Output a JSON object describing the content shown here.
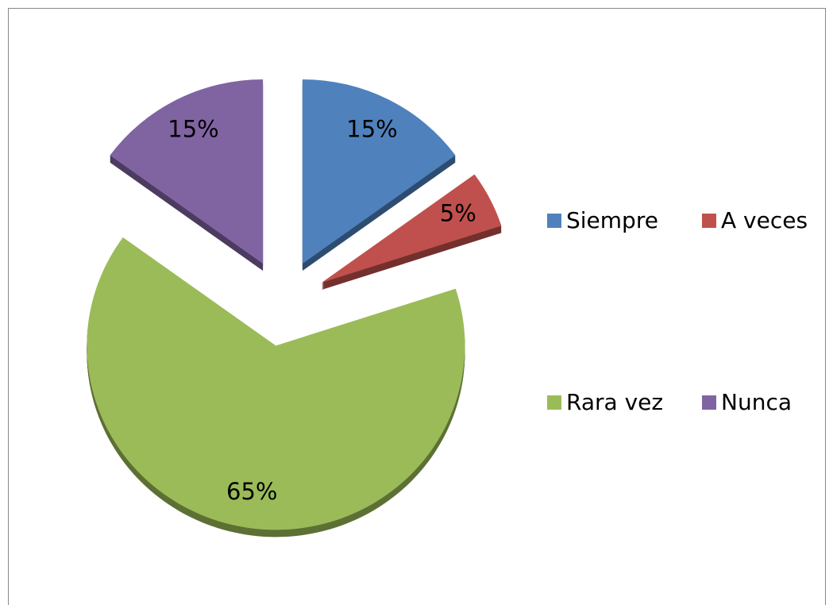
{
  "chart_data": {
    "type": "pie",
    "categories": [
      "Siempre",
      "A veces",
      "Rara vez",
      "Nunca"
    ],
    "values": [
      15,
      5,
      65,
      15
    ],
    "value_labels": [
      "15%",
      "5%",
      "65%",
      "15%"
    ],
    "colors": [
      "#4f81bd",
      "#c0504d",
      "#9bbb59",
      "#8064a2"
    ],
    "legend": "right"
  }
}
